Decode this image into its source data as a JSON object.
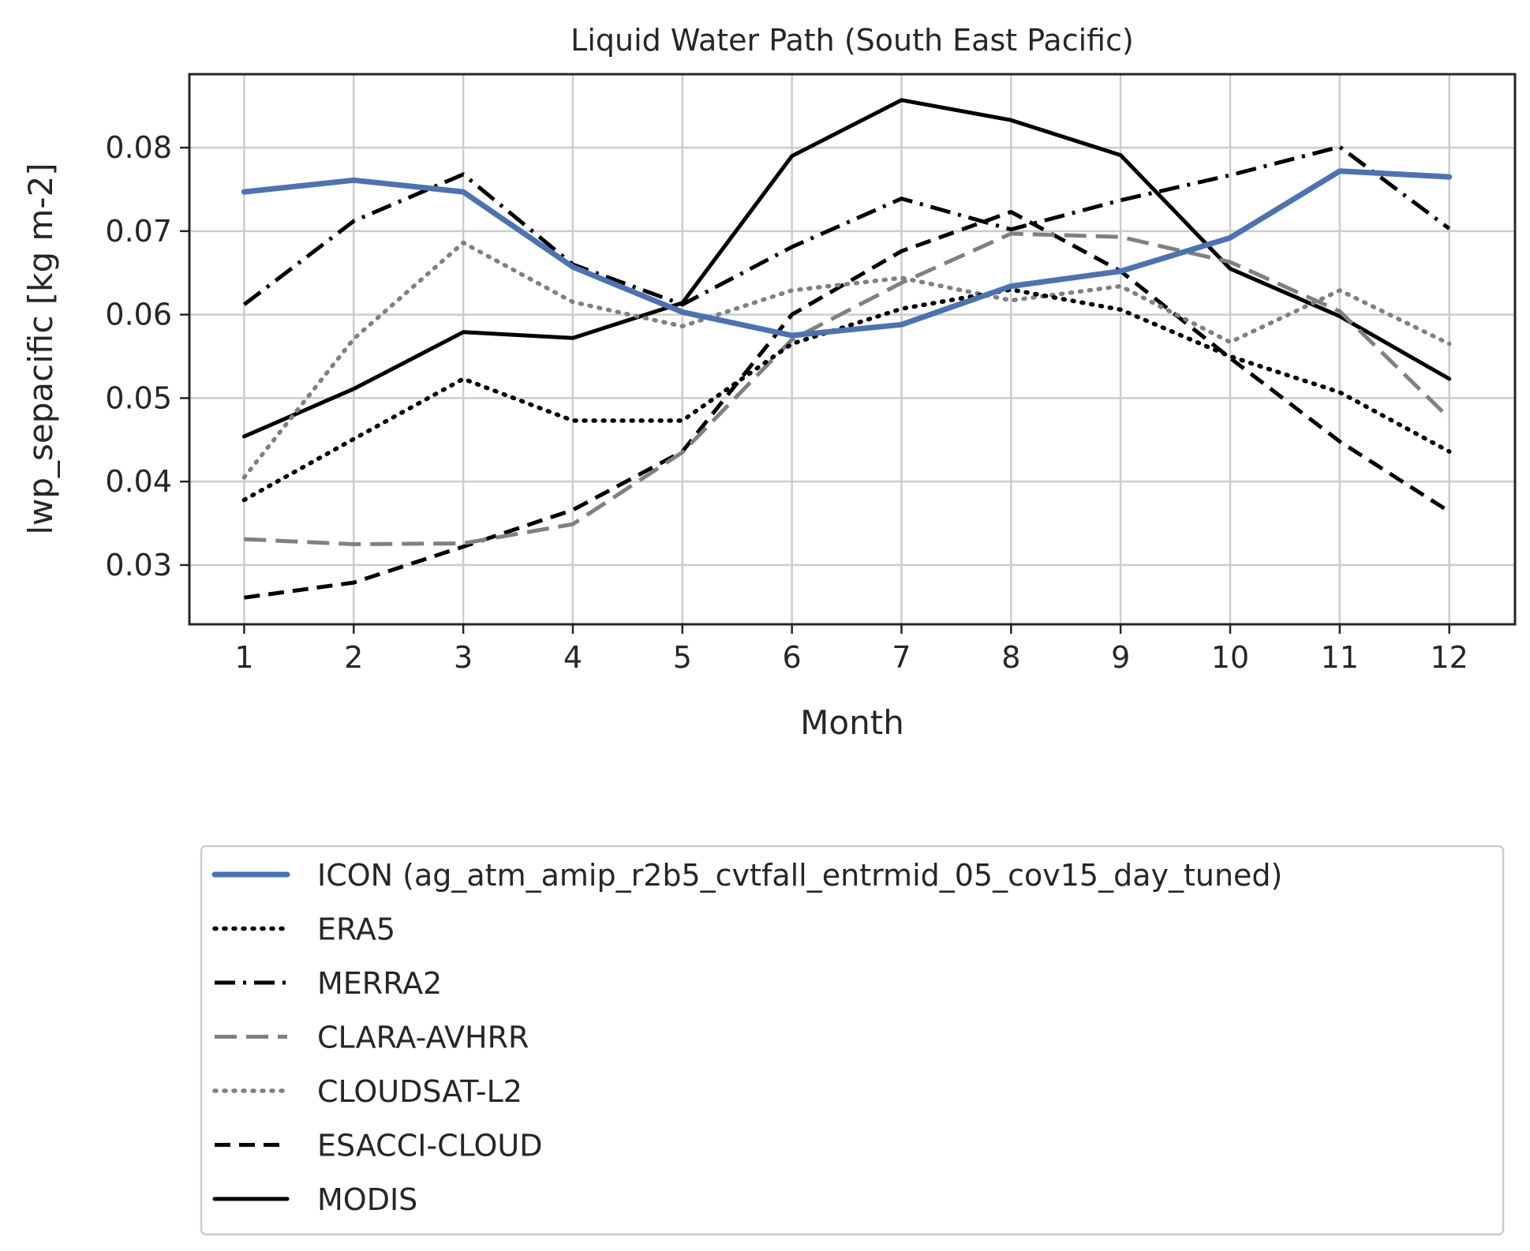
{
  "chart_data": {
    "type": "line",
    "title": "Liquid Water Path (South East Pacific)",
    "xlabel": "Month",
    "ylabel": "lwp_sepacific [kg m-2]",
    "x": [
      1,
      2,
      3,
      4,
      5,
      6,
      7,
      8,
      9,
      10,
      11,
      12
    ],
    "xlim": [
      0.5,
      12.6
    ],
    "ylim": [
      0.0229,
      0.0888
    ],
    "yticks": [
      0.03,
      0.04,
      0.05,
      0.06,
      0.07,
      0.08
    ],
    "ytick_labels": [
      "0.03",
      "0.04",
      "0.05",
      "0.06",
      "0.07",
      "0.08"
    ],
    "xtick_labels": [
      "1",
      "2",
      "3",
      "4",
      "5",
      "6",
      "7",
      "8",
      "9",
      "10",
      "11",
      "12"
    ],
    "grid": true,
    "legend_position": "below the plot",
    "series": [
      {
        "name": "ICON (ag_atm_amip_r2b5_cvtfall_entrmid_05_cov15_day_tuned)",
        "color": "#4c72b0",
        "style": "solid-thick",
        "values": [
          0.0747,
          0.0761,
          0.0747,
          0.0657,
          0.0603,
          0.0575,
          0.0588,
          0.0634,
          0.0652,
          0.0692,
          0.0772,
          0.0765
        ]
      },
      {
        "name": "ERA5",
        "color": "#000000",
        "style": "dotted",
        "values": [
          0.0378,
          0.0451,
          0.0523,
          0.0473,
          0.0473,
          0.0565,
          0.0607,
          0.063,
          0.0606,
          0.055,
          0.0507,
          0.0436
        ]
      },
      {
        "name": "MERRA2",
        "color": "#000000",
        "style": "dashdot",
        "values": [
          0.0612,
          0.0712,
          0.0768,
          0.066,
          0.0612,
          0.0681,
          0.0739,
          0.0702,
          0.0737,
          0.0767,
          0.0801,
          0.0703
        ]
      },
      {
        "name": "CLARA-AVHRR",
        "color": "#808080",
        "style": "dashed-long",
        "values": [
          0.0331,
          0.0325,
          0.0326,
          0.0349,
          0.0435,
          0.057,
          0.0638,
          0.0697,
          0.0693,
          0.0663,
          0.0604,
          0.0476
        ]
      },
      {
        "name": "CLOUDSAT-L2",
        "color": "#808080",
        "style": "dotted",
        "values": [
          0.0405,
          0.0571,
          0.0686,
          0.0615,
          0.0586,
          0.0629,
          0.0644,
          0.0617,
          0.0634,
          0.0567,
          0.0629,
          0.0565
        ]
      },
      {
        "name": "ESACCI-CLOUD",
        "color": "#000000",
        "style": "dashed",
        "values": [
          0.0261,
          0.0279,
          0.0322,
          0.0366,
          0.0436,
          0.06,
          0.0676,
          0.0723,
          0.0652,
          0.0548,
          0.0448,
          0.0364
        ]
      },
      {
        "name": "MODIS",
        "color": "#000000",
        "style": "solid",
        "values": [
          0.0454,
          0.0511,
          0.0579,
          0.0572,
          0.0614,
          0.079,
          0.0857,
          0.0833,
          0.0791,
          0.0655,
          0.0598,
          0.0523
        ]
      }
    ]
  }
}
